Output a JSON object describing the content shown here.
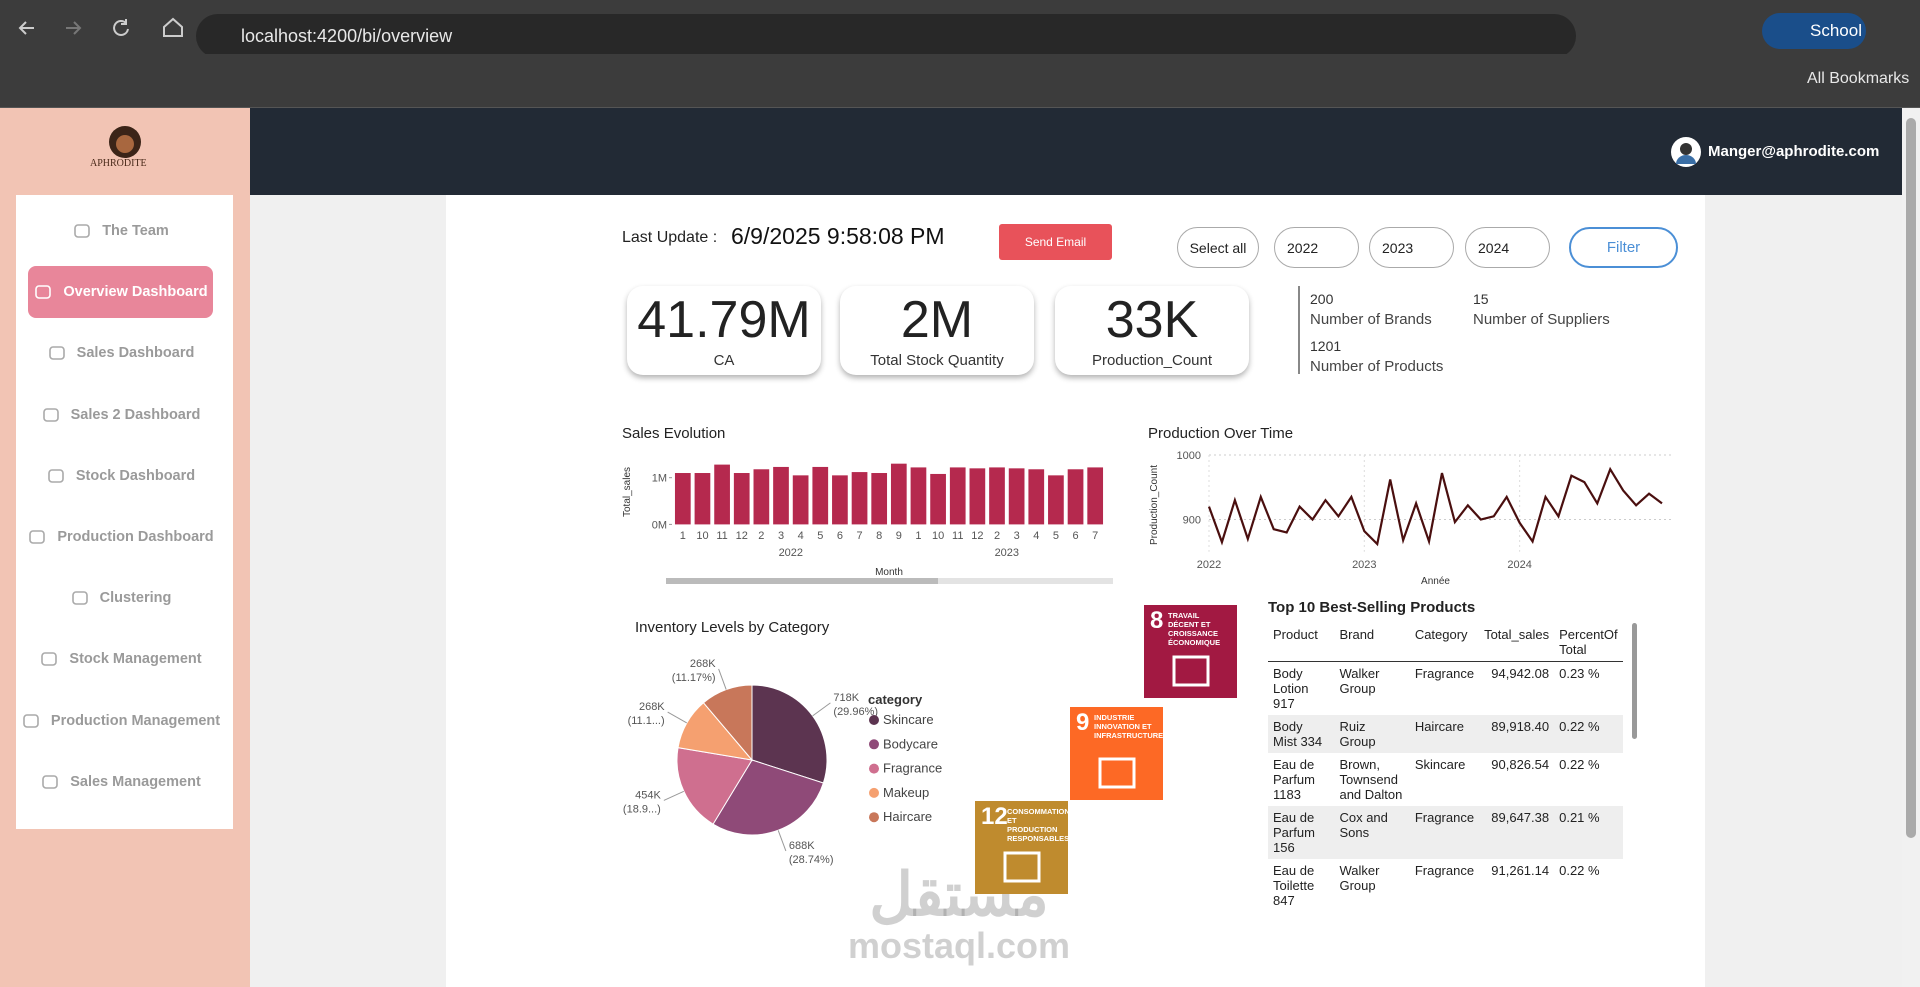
{
  "browser": {
    "url": "localhost:4200/bi/overview",
    "profile": "School",
    "bookmarks": "All Bookmarks"
  },
  "sidebar": {
    "logo": "APHRODITE",
    "nav": [
      "The Team",
      "Overview Dashboard",
      "Sales Dashboard",
      "Sales 2 Dashboard",
      "Stock Dashboard",
      "Production Dashboard",
      "Clustering",
      "Stock Management",
      "Production Management",
      "Sales Management"
    ],
    "active": 1
  },
  "header": {
    "user": "Manger@aphrodite.com"
  },
  "toolbar": {
    "last_update_label": "Last Update :",
    "last_update": "6/9/2025 9:58:08 PM",
    "send_email": "Send Email",
    "select_all": "Select all",
    "years": [
      "2022",
      "2023",
      "2024"
    ],
    "filter": "Filter"
  },
  "kpis": [
    {
      "value": "41.79M",
      "label": "CA"
    },
    {
      "value": "2M",
      "label": "Total Stock Quantity"
    },
    {
      "value": "33K",
      "label": "Production_Count"
    }
  ],
  "stats": [
    {
      "value": "200",
      "label": "Number of Brands"
    },
    {
      "value": "15",
      "label": "Number of Suppliers"
    },
    {
      "value": "1201",
      "label": "Number of Products"
    }
  ],
  "chart_data": [
    {
      "type": "bar",
      "title": "Sales Evolution",
      "xlabel": "Month",
      "ylabel": "Total_sales",
      "color": "#b5294e",
      "categories": [
        "1",
        "10",
        "11",
        "12",
        "2",
        "3",
        "4",
        "5",
        "6",
        "7",
        "8",
        "9",
        "1",
        "10",
        "11",
        "12",
        "2",
        "3",
        "4",
        "5",
        "6",
        "7"
      ],
      "groups": [
        "2022",
        "2023"
      ],
      "values": [
        1100000,
        1100000,
        1280000,
        1100000,
        1180000,
        1230000,
        1050000,
        1230000,
        1050000,
        1120000,
        1100000,
        1300000,
        1220000,
        1080000,
        1220000,
        1200000,
        1220000,
        1200000,
        1180000,
        1050000,
        1180000,
        1220000
      ],
      "ylim": [
        0,
        1400000
      ],
      "yticks": [
        {
          "value": 0,
          "label": "0M"
        },
        {
          "value": 1000000,
          "label": "1M"
        }
      ]
    },
    {
      "type": "line",
      "title": "Production Over Time",
      "xlabel": "Année",
      "ylabel": "Production_Count",
      "color": "#4a0f0f",
      "grid": true,
      "categories": [
        "2022",
        null,
        null,
        null,
        null,
        null,
        null,
        null,
        null,
        null,
        null,
        null,
        "2023",
        null,
        null,
        null,
        null,
        null,
        null,
        null,
        null,
        null,
        null,
        null,
        "2024",
        null,
        null,
        null,
        null,
        null,
        null,
        null,
        null,
        null,
        null,
        null
      ],
      "values": [
        920,
        865,
        930,
        870,
        935,
        885,
        880,
        920,
        900,
        930,
        905,
        935,
        882,
        862,
        962,
        868,
        925,
        866,
        972,
        896,
        922,
        900,
        905,
        935,
        895,
        866,
        935,
        905,
        968,
        958,
        925,
        978,
        945,
        922,
        940,
        925
      ],
      "ylim": [
        850,
        1000
      ],
      "yticks": [
        900,
        1000
      ]
    },
    {
      "type": "pie",
      "title": "Inventory Levels by Category",
      "legend_title": "category",
      "legend": "right",
      "categories": [
        "Skincare",
        "Bodycare",
        "Fragrance",
        "Makeup",
        "Haircare"
      ],
      "values": [
        718000,
        688000,
        454000,
        268000,
        268000
      ],
      "value_labels": [
        "718K",
        "688K",
        "454K",
        "268K",
        "268K"
      ],
      "percent_labels": [
        "(29.96%)",
        "(28.74%)",
        "(18.9...)",
        "(11.1...)",
        "(11.17%)"
      ],
      "colors": [
        "#5c3450",
        "#8f4a78",
        "#cf6f8f",
        "#f5a070",
        "#c8775a"
      ]
    }
  ],
  "sdg": [
    {
      "number": "8",
      "label": "TRAVAIL DÉCENT ET CROISSANCE ÉCONOMIQUE",
      "color": "#a21942"
    },
    {
      "number": "9",
      "label": "INDUSTRIE INNOVATION ET INFRASTRUCTURE",
      "color": "#fd6925"
    },
    {
      "number": "12",
      "label": "CONSOMMATION ET PRODUCTION RESPONSABLES",
      "color": "#bf8b2e"
    }
  ],
  "table": {
    "title": "Top 10 Best-Selling Products",
    "columns": [
      "Product",
      "Brand",
      "Category",
      "Total_sales",
      "PercentOf Total"
    ],
    "rows": [
      [
        "Body Lotion 917",
        "Walker Group",
        "Fragrance",
        "94,942.08",
        "0.23 %"
      ],
      [
        "Body Mist 334",
        "Ruiz Group",
        "Haircare",
        "89,918.40",
        "0.22 %"
      ],
      [
        "Eau de Parfum 1183",
        "Brown, Townsend and Dalton",
        "Skincare",
        "90,826.54",
        "0.22 %"
      ],
      [
        "Eau de Parfum 156",
        "Cox and Sons",
        "Fragrance",
        "89,647.38",
        "0.21 %"
      ],
      [
        "Eau de Toilette 847",
        "Walker Group",
        "Fragrance",
        "91,261.14",
        "0.22 %"
      ]
    ]
  },
  "watermark": {
    "arabic": "مستقل",
    "latin": "mostaql.com"
  }
}
